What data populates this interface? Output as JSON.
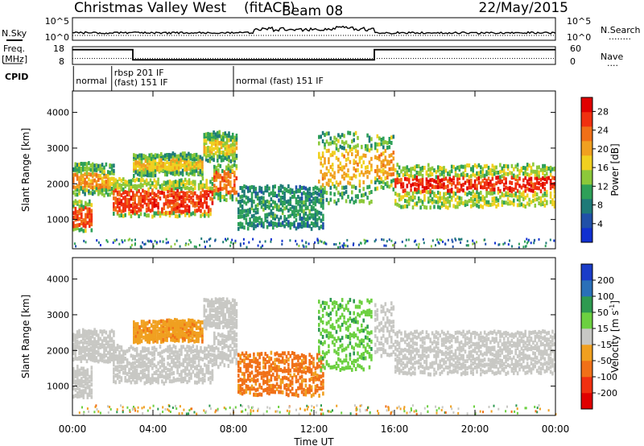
{
  "header": {
    "site": "Christmas Valley West",
    "mode": "(fitACF)",
    "beam": "Beam 08",
    "date": "22/May/2015"
  },
  "status_strips": {
    "nsky": {
      "label": "N.Sky",
      "left_ticks": [
        "10^5",
        "10^0"
      ],
      "right_ticks": [
        "10^5",
        "10^0"
      ],
      "right_label": "N.Search",
      "right_dots": "........"
    },
    "freq": {
      "label": "Freq.",
      "units": "[MHz]",
      "left_ticks": [
        "18",
        "8"
      ],
      "right_ticks": [
        "60",
        "0"
      ],
      "right_label": "Nave",
      "right_dots": "....",
      "freq_segments": [
        {
          "start": 0.0,
          "end": 3.0,
          "value": 16.3
        },
        {
          "start": 3.0,
          "end": 15.0,
          "value": 10.6
        },
        {
          "start": 15.0,
          "end": 24.0,
          "value": 16.3
        }
      ],
      "nave_level": 20
    },
    "cpid": {
      "label": "CPID",
      "segments": [
        {
          "time": 0.05,
          "text": "normal"
        },
        {
          "time": 1.95,
          "text": "rbsp 201  IF",
          "row": "top"
        },
        {
          "time": 1.95,
          "text": "(fast)  151  IF",
          "row": "bottom"
        },
        {
          "time": 8.0,
          "text": "normal (fast)  151  IF"
        }
      ]
    }
  },
  "chart_data": [
    {
      "type": "heatmap",
      "name": "power-panel",
      "x_range_hours": [
        0,
        24
      ],
      "y_range_km": [
        180,
        4600
      ],
      "ylabel": "Slant Range [km]",
      "yticks": [
        1000,
        2000,
        3000,
        4000
      ],
      "colorbar": {
        "label": "Power [dB]",
        "ticks": [
          4,
          8,
          12,
          16,
          20,
          24,
          28
        ],
        "range": [
          0,
          31
        ],
        "colors": [
          "#1030d0",
          "#2050a8",
          "#1e7a78",
          "#2ea058",
          "#8cc83a",
          "#f0d020",
          "#f0a020",
          "#f07018",
          "#f03010",
          "#e00000"
        ]
      },
      "echo_regions": [
        {
          "t0": 0.0,
          "t1": 2.1,
          "r_lo": 1650,
          "r_hi": 2550,
          "core_lo": 1850,
          "core_hi": 2250,
          "peak_db": 23
        },
        {
          "t0": 0.0,
          "t1": 1.0,
          "r_lo": 650,
          "r_hi": 1500,
          "core_lo": 750,
          "core_hi": 1300,
          "peak_db": 28
        },
        {
          "t0": 2.0,
          "t1": 7.0,
          "r_lo": 1050,
          "r_hi": 2100,
          "core_lo": 1150,
          "core_hi": 1800,
          "peak_db": 29
        },
        {
          "t0": 7.0,
          "t1": 8.2,
          "r_lo": 1500,
          "r_hi": 2500,
          "core_lo": 1700,
          "core_hi": 2300,
          "peak_db": 26
        },
        {
          "t0": 3.0,
          "t1": 6.5,
          "r_lo": 2200,
          "r_hi": 2800,
          "core_lo": 2350,
          "core_hi": 2650,
          "peak_db": 21
        },
        {
          "t0": 6.5,
          "t1": 8.2,
          "r_lo": 2600,
          "r_hi": 3400,
          "core_lo": 2800,
          "core_hi": 3200,
          "peak_db": 20
        },
        {
          "t0": 8.2,
          "t1": 12.5,
          "r_lo": 700,
          "r_hi": 1900,
          "core_lo": 1000,
          "core_hi": 1500,
          "peak_db": 13
        },
        {
          "t0": 12.2,
          "t1": 14.9,
          "r_lo": 1400,
          "r_hi": 3400,
          "core_lo": 1900,
          "core_hi": 2900,
          "peak_db": 22
        },
        {
          "t0": 15.0,
          "t1": 16.0,
          "r_lo": 1800,
          "r_hi": 3300,
          "core_lo": 2100,
          "core_hi": 2900,
          "peak_db": 24
        },
        {
          "t0": 16.0,
          "t1": 24.0,
          "r_lo": 1300,
          "r_hi": 2500,
          "core_lo": 1750,
          "core_hi": 2150,
          "peak_db": 30
        }
      ]
    },
    {
      "type": "heatmap",
      "name": "velocity-panel",
      "x_range_hours": [
        0,
        24
      ],
      "y_range_km": [
        180,
        4600
      ],
      "ylabel": "Slant Range [km]",
      "yticks": [
        1000,
        2000,
        3000,
        4000
      ],
      "xlabel": "Time UT",
      "xticks": [
        "00:00",
        "04:00",
        "08:00",
        "12:00",
        "16:00",
        "20:00",
        "00:00"
      ],
      "colorbar": {
        "label": "Velocity [m s",
        "label_sup": "-1",
        "label_end": "]",
        "ticks": [
          200,
          100,
          50,
          15,
          -15,
          -50,
          -100,
          -200
        ],
        "colors": [
          "#1a3cc8",
          "#2a70b8",
          "#2e9a50",
          "#6cd040",
          "#c8c8c4",
          "#f0a020",
          "#f07018",
          "#f03010",
          "#e00000"
        ]
      },
      "echo_regions": [
        {
          "t0": 0.0,
          "t1": 2.1,
          "r_lo": 1650,
          "r_hi": 2550,
          "vel": 0
        },
        {
          "t0": 0.0,
          "t1": 1.0,
          "r_lo": 650,
          "r_hi": 1500,
          "vel": 0
        },
        {
          "t0": 2.0,
          "t1": 7.0,
          "r_lo": 1050,
          "r_hi": 2100,
          "vel": 0
        },
        {
          "t0": 7.0,
          "t1": 8.2,
          "r_lo": 1500,
          "r_hi": 2500,
          "vel": 0
        },
        {
          "t0": 3.0,
          "t1": 6.5,
          "r_lo": 2200,
          "r_hi": 2800,
          "vel": -40
        },
        {
          "t0": 6.5,
          "t1": 8.2,
          "r_lo": 2600,
          "r_hi": 3400,
          "vel": 0
        },
        {
          "t0": 8.2,
          "t1": 12.5,
          "r_lo": 700,
          "r_hi": 1900,
          "vel": -60
        },
        {
          "t0": 12.2,
          "t1": 14.9,
          "r_lo": 1400,
          "r_hi": 3400,
          "vel": 40
        },
        {
          "t0": 15.0,
          "t1": 16.0,
          "r_lo": 1800,
          "r_hi": 3300,
          "vel": 0
        },
        {
          "t0": 16.0,
          "t1": 24.0,
          "r_lo": 1300,
          "r_hi": 2500,
          "vel": 0
        }
      ]
    }
  ]
}
